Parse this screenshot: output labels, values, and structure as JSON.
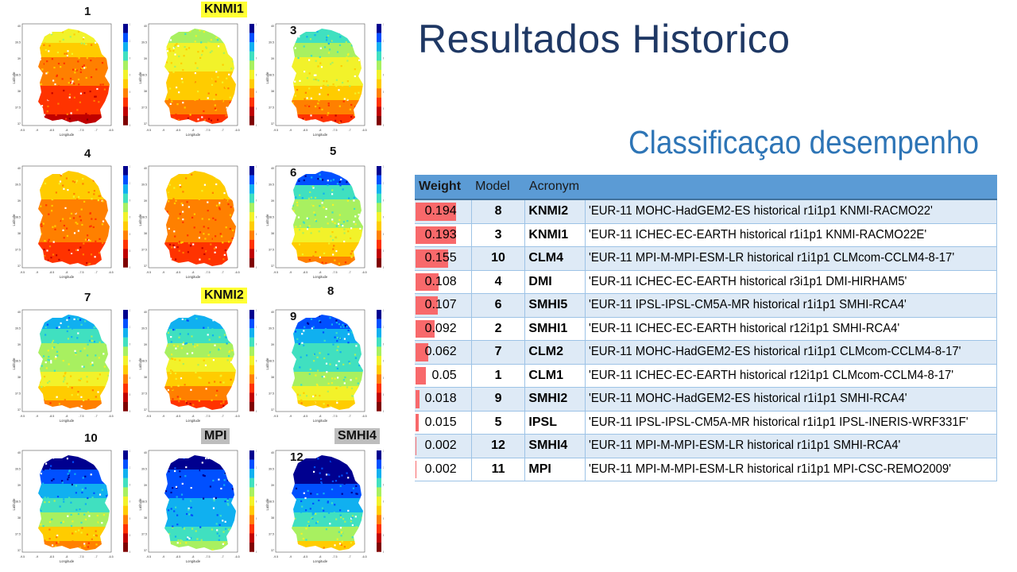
{
  "title": "Resultados Historico",
  "subtitle": "Classificaçao desempenho",
  "maps": {
    "panels": [
      {
        "number": "1",
        "tag": "",
        "tag_color": ""
      },
      {
        "number": "",
        "tag": "KNMI1",
        "tag_color": "#ffff33"
      },
      {
        "number": "3",
        "tag": "",
        "tag_color": ""
      },
      {
        "number": "4",
        "tag": "",
        "tag_color": ""
      },
      {
        "number": "",
        "tag": "",
        "tag_color": ""
      },
      {
        "number": "6",
        "tag": "",
        "tag_color": ""
      },
      {
        "number": "7",
        "tag": "",
        "tag_color": ""
      },
      {
        "number": "",
        "tag": "KNMI2",
        "tag_color": "#ffff33"
      },
      {
        "number": "9",
        "tag": "",
        "tag_color": ""
      },
      {
        "number": "10",
        "tag": "",
        "tag_color": ""
      },
      {
        "number": "",
        "tag": "MPI",
        "tag_color": "#bdbdbd"
      },
      {
        "number": "12",
        "tag": "SMHI4",
        "tag_color": "#bdbdbd"
      }
    ],
    "extra_numbers": [
      "5",
      "8"
    ],
    "colorbar_ticks": [
      "1.2",
      "1.1",
      "1",
      "0.9",
      "0.8",
      "0.7",
      "0.6",
      "0.5",
      "0.4",
      "0.3",
      "0.2",
      "0.1",
      "0"
    ],
    "x_axis_label": "Longitude",
    "y_axis_label": "Latitude",
    "x_ticks": [
      "-9.5",
      "-9",
      "-8.5",
      "-8",
      "-7.5",
      "-7",
      "-6.5"
    ],
    "y_ticks": [
      "40",
      "39.5",
      "39",
      "38.5",
      "38",
      "37.5",
      "37"
    ]
  },
  "table": {
    "headers": {
      "weight": "Weight",
      "model": "Model",
      "acronym": "Acronym"
    },
    "rows": [
      {
        "weight": "0.194",
        "model": "8",
        "acronym": "KNMI2",
        "description": "'EUR-11 MOHC-HadGEM2-ES historical r1i1p1 KNMI-RACMO22'"
      },
      {
        "weight": "0.193",
        "model": "3",
        "acronym": "KNMI1",
        "description": "'EUR-11 ICHEC-EC-EARTH historical r1i1p1 KNMI-RACMO22E'"
      },
      {
        "weight": "0.155",
        "model": "10",
        "acronym": "CLM4",
        "description": "'EUR-11 MPI-M-MPI-ESM-LR historical r1i1p1 CLMcom-CCLM4-8-17'"
      },
      {
        "weight": "0.108",
        "model": "4",
        "acronym": "DMI",
        "description": "'EUR-11 ICHEC-EC-EARTH historical r3i1p1 DMI-HIRHAM5'"
      },
      {
        "weight": "0.107",
        "model": "6",
        "acronym": "SMHI5",
        "description": "'EUR-11 IPSL-IPSL-CM5A-MR historical r1i1p1 SMHI-RCA4'"
      },
      {
        "weight": "0.092",
        "model": "2",
        "acronym": "SMHI1",
        "description": "'EUR-11 ICHEC-EC-EARTH historical r12i1p1 SMHI-RCA4'"
      },
      {
        "weight": "0.062",
        "model": "7",
        "acronym": "CLM2",
        "description": "'EUR-11 MOHC-HadGEM2-ES historical r1i1p1 CLMcom-CCLM4-8-17'"
      },
      {
        "weight": "0.05",
        "model": "1",
        "acronym": "CLM1",
        "description": "'EUR-11 ICHEC-EC-EARTH historical r12i1p1 CLMcom-CCLM4-8-17'"
      },
      {
        "weight": "0.018",
        "model": "9",
        "acronym": "SMHI2",
        "description": "'EUR-11 MOHC-HadGEM2-ES historical r1i1p1 SMHI-RCA4'"
      },
      {
        "weight": "0.015",
        "model": "5",
        "acronym": "IPSL",
        "description": "'EUR-11 IPSL-IPSL-CM5A-MR historical r1i1p1 IPSL-INERIS-WRF331F'"
      },
      {
        "weight": "0.002",
        "model": "12",
        "acronym": "SMHI4",
        "description": "'EUR-11 MPI-M-MPI-ESM-LR historical r1i1p1 SMHI-RCA4'"
      },
      {
        "weight": "0.002",
        "model": "11",
        "acronym": "MPI",
        "description": "'EUR-11 MPI-M-MPI-ESM-LR historical r1i1p1 MPI-CSC-REMO2009'"
      }
    ],
    "weight_bar_color": "#f8696b",
    "weight_bar_max": 0.194,
    "header_color": "#5b9bd5",
    "band_color": "#deeaf6"
  }
}
